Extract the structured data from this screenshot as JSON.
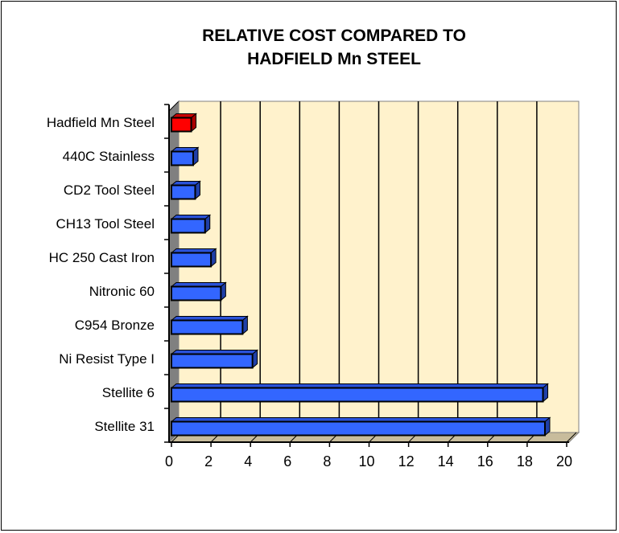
{
  "chart_data": {
    "type": "bar",
    "orientation": "horizontal",
    "style": "3d",
    "title": "RELATIVE COST COMPARED TO\nHADFIELD Mn  STEEL",
    "title_lines": [
      "RELATIVE COST COMPARED TO",
      "HADFIELD Mn  STEEL"
    ],
    "categories": [
      "Hadfield Mn Steel",
      "440C Stainless",
      "CD2 Tool Steel",
      "CH13 Tool Steel",
      "HC 250 Cast Iron",
      "Nitronic 60",
      "C954 Bronze",
      "Ni Resist Type I",
      "Stellite 6",
      "Stellite 31"
    ],
    "values": [
      1.0,
      1.1,
      1.2,
      1.7,
      2.0,
      2.5,
      3.6,
      4.1,
      18.8,
      18.9
    ],
    "bar_colors": [
      "#ff0000",
      "#3366ff",
      "#3366ff",
      "#3366ff",
      "#3366ff",
      "#3366ff",
      "#3366ff",
      "#3366ff",
      "#3366ff",
      "#3366ff"
    ],
    "xlim": [
      0,
      20
    ],
    "xticks": [
      0,
      2,
      4,
      6,
      8,
      10,
      12,
      14,
      16,
      18,
      20
    ],
    "xlabel": "",
    "ylabel": "",
    "grid": true,
    "legend": "none",
    "colors": {
      "wall": "#fff2cc",
      "side_wall": "#808080",
      "floor": "#c8bc9c",
      "highlight": "#ff0000",
      "bar": "#3366ff"
    }
  }
}
